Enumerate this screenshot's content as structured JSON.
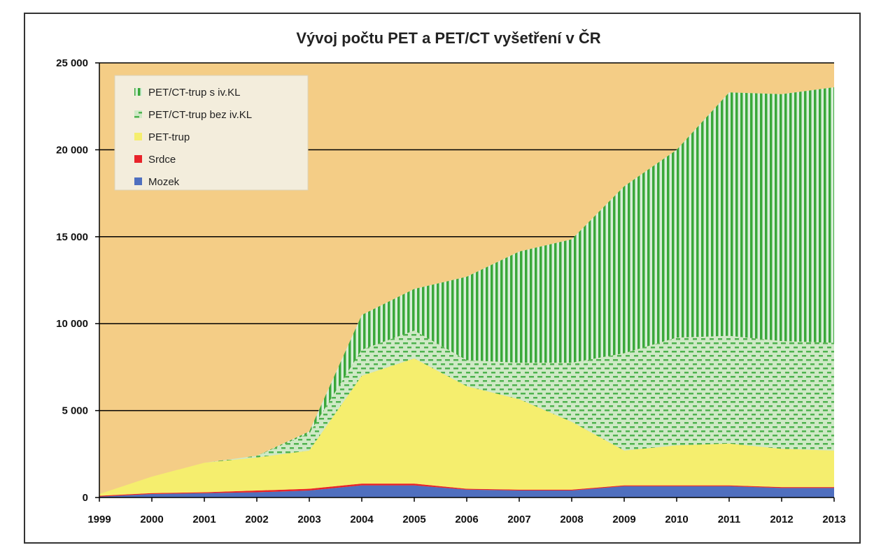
{
  "chart_data": {
    "type": "area",
    "stacked": true,
    "title": "Vývoj počtu PET a PET/CT vyšetření v ČR",
    "xlabel": "",
    "ylabel": "",
    "x": [
      "1999",
      "2000",
      "2001",
      "2002",
      "2003",
      "2004",
      "2005",
      "2006",
      "2007",
      "2008",
      "2009",
      "2010",
      "2011",
      "2012",
      "2013"
    ],
    "ylim": [
      0,
      25000
    ],
    "yticks": [
      0,
      5000,
      10000,
      15000,
      20000,
      25000
    ],
    "ytick_labels": [
      "0",
      "5 000",
      "10 000",
      "15 000",
      "20 000",
      "25 000"
    ],
    "grid": "horizontal",
    "legend_position": "top-left",
    "series": [
      {
        "name": "Mozek",
        "color": "#4f6fbf",
        "values": [
          50,
          200,
          250,
          300,
          400,
          700,
          700,
          450,
          400,
          400,
          650,
          650,
          650,
          550,
          550
        ]
      },
      {
        "name": "Srdce",
        "color": "#e8232a",
        "values": [
          50,
          50,
          50,
          100,
          100,
          100,
          100,
          50,
          50,
          50,
          50,
          50,
          50,
          50,
          50
        ]
      },
      {
        "name": "PET-trup",
        "color": "#f5ee6e",
        "values": [
          100,
          950,
          1700,
          1900,
          2200,
          6200,
          7200,
          5900,
          5200,
          3900,
          2000,
          2300,
          2400,
          2200,
          2100
        ]
      },
      {
        "name": "PET/CT-trup bez iv.KL",
        "color": "#8fd18f",
        "pattern": "dashes",
        "values": [
          0,
          0,
          0,
          100,
          1000,
          1500,
          1600,
          1500,
          2100,
          3400,
          5600,
          6200,
          6200,
          6200,
          6200
        ]
      },
      {
        "name": "PET/CT-trup s iv.KL",
        "color": "#3aa83a",
        "pattern": "vertical",
        "values": [
          0,
          0,
          0,
          0,
          100,
          2000,
          2400,
          4800,
          6400,
          7100,
          9600,
          10800,
          14000,
          14200,
          14700
        ]
      }
    ],
    "colors": {
      "plot_background": "#f4cd86",
      "gridline": "#000000"
    }
  }
}
